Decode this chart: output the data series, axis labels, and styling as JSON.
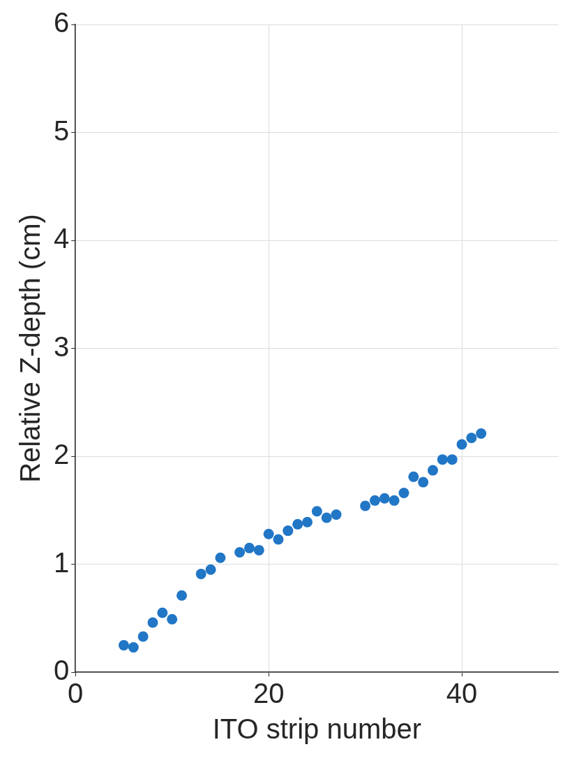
{
  "chart_data": {
    "type": "scatter",
    "xlabel": "ITO strip number",
    "ylabel": "Relative Z-depth (cm)",
    "x": [
      5,
      6,
      7,
      8,
      9,
      10,
      11,
      13,
      14,
      15,
      17,
      18,
      19,
      20,
      21,
      22,
      23,
      24,
      25,
      26,
      27,
      30,
      31,
      32,
      33,
      34,
      35,
      36,
      37,
      38,
      39,
      40,
      41,
      42
    ],
    "series": [
      {
        "color": "#2176c6",
        "values": [
          0.25,
          0.23,
          0.33,
          0.46,
          0.55,
          0.49,
          0.71,
          0.91,
          0.95,
          1.06,
          1.11,
          1.15,
          1.13,
          1.28,
          1.23,
          1.31,
          1.37,
          1.39,
          1.49,
          1.43,
          1.46,
          1.54,
          1.59,
          1.61,
          1.59,
          1.66,
          1.81,
          1.76,
          1.87,
          1.97,
          1.97,
          2.11,
          2.17,
          2.21
        ]
      }
    ],
    "xlim": [
      0,
      50
    ],
    "xticks": [
      0,
      20,
      40
    ],
    "ylim": [
      0,
      6
    ],
    "yticks": [
      0,
      1,
      2,
      3,
      4,
      5,
      6
    ],
    "grid": true,
    "legend": false,
    "marker": "circle"
  }
}
